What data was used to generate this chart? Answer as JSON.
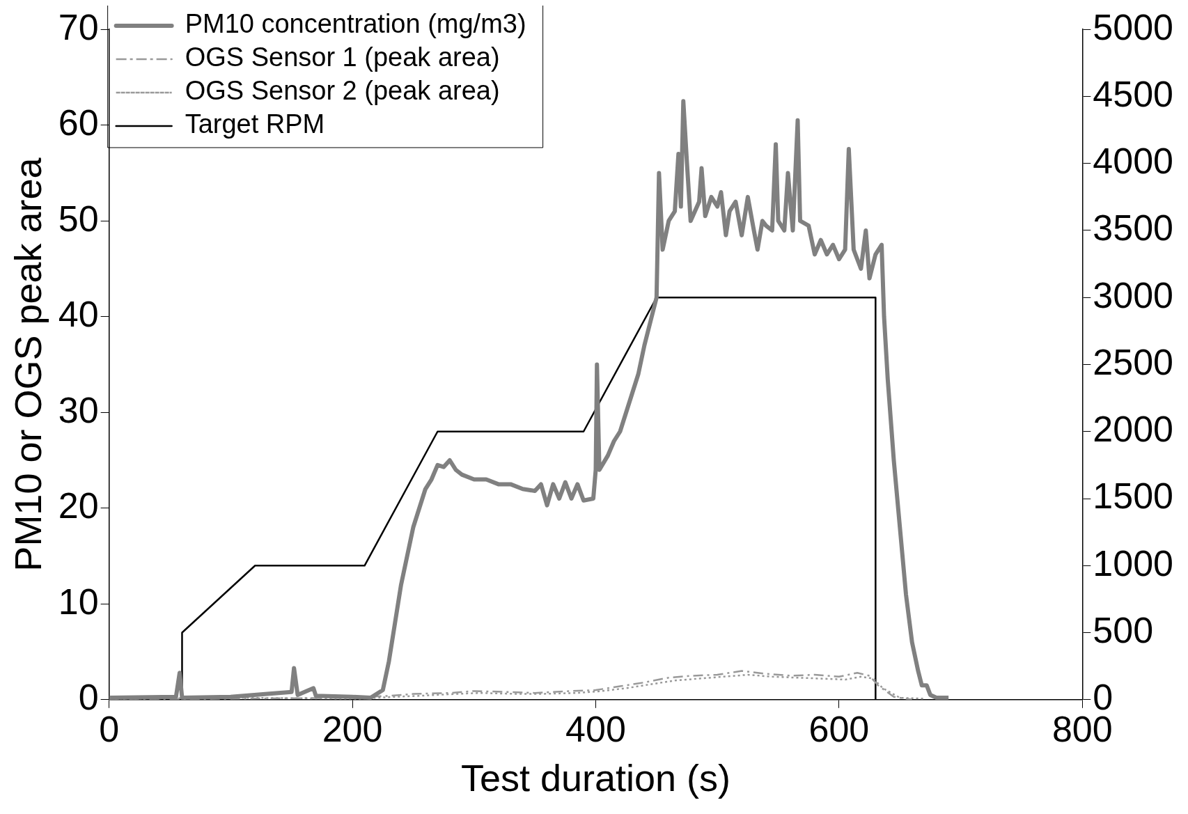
{
  "chart_data": {
    "type": "line",
    "xlabel": "Test duration (s)",
    "ylabel": "PM10 or OGS peak area",
    "xlim": [
      0,
      800
    ],
    "xticks": [
      0,
      200,
      400,
      600,
      800
    ],
    "ylim": [
      0,
      70
    ],
    "yticks": [
      0,
      10,
      20,
      30,
      40,
      50,
      60,
      70
    ],
    "y2lim": [
      0,
      5000
    ],
    "y2ticks": [
      0,
      500,
      1000,
      1500,
      2000,
      2500,
      3000,
      3500,
      4000,
      4500,
      5000
    ],
    "legend": "top left",
    "grid": false,
    "marker": "none",
    "series": [
      {
        "name": "PM10 concentration (mg/m3)",
        "color": "#808080",
        "line_style": "solid",
        "x": [
          0,
          55,
          58,
          60,
          100,
          130,
          150,
          152,
          155,
          168,
          170,
          200,
          215,
          225,
          230,
          235,
          240,
          245,
          250,
          255,
          260,
          265,
          270,
          275,
          280,
          285,
          290,
          300,
          310,
          320,
          330,
          340,
          350,
          355,
          360,
          365,
          370,
          375,
          380,
          385,
          390,
          398,
          400,
          401,
          403,
          410,
          415,
          420,
          425,
          430,
          435,
          440,
          445,
          450,
          452,
          455,
          460,
          465,
          468,
          470,
          472,
          475,
          478,
          485,
          487,
          490,
          495,
          500,
          503,
          507,
          510,
          515,
          520,
          525,
          530,
          533,
          537,
          540,
          545,
          548,
          550,
          555,
          558,
          562,
          566,
          568,
          575,
          580,
          585,
          590,
          595,
          600,
          605,
          608,
          612,
          615,
          618,
          622,
          625,
          630,
          635,
          637,
          640,
          645,
          650,
          655,
          660,
          665,
          668,
          672,
          675,
          680,
          690
        ],
        "values": [
          0.2,
          0.3,
          2.8,
          0.2,
          0.3,
          0.6,
          0.8,
          3.3,
          0.5,
          1.2,
          0.4,
          0.3,
          0.2,
          1,
          4,
          8,
          12,
          15,
          18,
          20,
          22,
          23,
          24.5,
          24.3,
          25,
          24,
          23.5,
          23,
          23,
          22.5,
          22.5,
          22,
          21.8,
          22.5,
          20.3,
          22.5,
          21,
          22.7,
          21,
          22.5,
          20.8,
          21,
          24,
          35,
          24,
          25.5,
          27,
          28,
          30,
          32,
          34,
          37,
          39.5,
          42,
          55,
          47,
          50,
          51,
          57,
          51.5,
          62.5,
          56,
          50,
          52,
          55.5,
          50.5,
          52.5,
          51.5,
          53,
          48.5,
          51,
          52,
          48.5,
          52.5,
          49,
          47,
          50,
          49.5,
          49,
          58,
          50,
          49,
          55,
          49,
          60.5,
          50,
          49.5,
          46.5,
          48,
          46.5,
          47.5,
          46,
          47,
          57.5,
          47,
          46,
          45,
          49,
          44,
          46.5,
          47.5,
          40,
          33.5,
          25,
          18,
          11,
          6,
          3,
          1.5,
          1.5,
          0.5,
          0.2,
          0.2
        ]
      },
      {
        "name": "OGS Sensor 1 (peak area)",
        "color": "#999999",
        "line_style": "dashed",
        "x": [
          0,
          100,
          200,
          230,
          250,
          280,
          300,
          330,
          350,
          380,
          400,
          420,
          440,
          460,
          480,
          500,
          520,
          540,
          560,
          580,
          600,
          615,
          625,
          632,
          645,
          660
        ],
        "values": [
          0,
          0.1,
          0.2,
          0.4,
          0.6,
          0.7,
          0.9,
          0.8,
          0.7,
          0.9,
          1,
          1.4,
          1.8,
          2.3,
          2.5,
          2.6,
          3,
          2.7,
          2.5,
          2.6,
          2.4,
          2.8,
          2.5,
          1.5,
          0.3,
          0
        ]
      },
      {
        "name": "OGS Sensor 2 (peak area)",
        "color": "#999999",
        "line_style": "dotted",
        "x": [
          5,
          105,
          205,
          235,
          255,
          285,
          305,
          335,
          355,
          385,
          405,
          425,
          445,
          465,
          485,
          505,
          525,
          545,
          565,
          585,
          605,
          618,
          628,
          636,
          650,
          670
        ],
        "values": [
          0.1,
          0.2,
          0.1,
          0.3,
          0.4,
          0.6,
          0.7,
          0.6,
          0.6,
          0.7,
          0.9,
          1.2,
          1.6,
          2,
          2.2,
          2.4,
          2.6,
          2.4,
          2.3,
          2.2,
          2.1,
          2.4,
          2.2,
          1.2,
          0.2,
          0.1
        ]
      },
      {
        "name": "Target RPM",
        "color": "#000000",
        "line_style": "solid",
        "axis": "y2",
        "x": [
          0,
          60,
          60,
          120,
          210,
          270,
          390,
          450,
          630,
          630
        ],
        "values": [
          0,
          0,
          500,
          1000,
          1000,
          2000,
          2000,
          3000,
          3000,
          0
        ]
      }
    ]
  }
}
